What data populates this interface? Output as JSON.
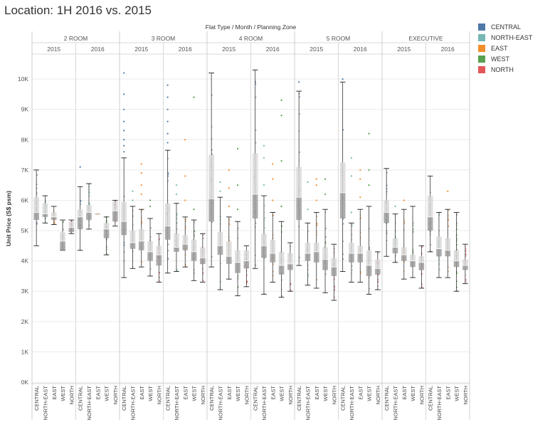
{
  "page": {
    "title": "Location: 1H 2016 vs. 2015"
  },
  "legend": {
    "items": [
      {
        "label": "CENTRAL",
        "color": "#4e79a7"
      },
      {
        "label": "NORTH-EAST",
        "color": "#76b7b2"
      },
      {
        "label": "EAST",
        "color": "#f28e2b"
      },
      {
        "label": "WEST",
        "color": "#59a14f"
      },
      {
        "label": "NORTH",
        "color": "#e15759"
      }
    ]
  },
  "chart_data": {
    "type": "boxplot",
    "header_title": "Flat Type / Month / Planning Zone",
    "ylabel": "Unit Price (S$ psm)",
    "ylim": [
      0,
      10800
    ],
    "y_ticks": [
      0,
      1000,
      2000,
      3000,
      4000,
      5000,
      6000,
      7000,
      8000,
      9000,
      10000
    ],
    "y_tick_labels": [
      "0K",
      "1K",
      "2K",
      "3K",
      "4K",
      "5K",
      "6K",
      "7K",
      "8K",
      "9K",
      "10K"
    ],
    "grid": true,
    "legend_position": "top-right",
    "groups": [
      {
        "flat_type": "2 ROOM",
        "periods": [
          {
            "year": "2015",
            "zones": [
              {
                "zone": "CENTRAL",
                "min": 4500,
                "q1": 5350,
                "median": 5600,
                "q3": 6100,
                "max": 7000,
                "outliers": []
              },
              {
                "zone": "NORTH-EAST",
                "min": 5250,
                "q1": 5450,
                "median": 5550,
                "q3": 5900,
                "max": 6150,
                "outliers": []
              },
              {
                "zone": "EAST",
                "min": 5200,
                "q1": 5350,
                "median": 5450,
                "q3": 5600,
                "max": 5800,
                "outliers": []
              },
              {
                "zone": "WEST",
                "min": 4350,
                "q1": 4350,
                "median": 4650,
                "q3": 4950,
                "max": 5350,
                "outliers": []
              },
              {
                "zone": "NORTH",
                "min": 4900,
                "q1": 4950,
                "median": 5100,
                "q3": 5300,
                "max": 5350,
                "outliers": []
              }
            ]
          },
          {
            "year": "2016",
            "zones": [
              {
                "zone": "CENTRAL",
                "min": 4350,
                "q1": 5050,
                "median": 5450,
                "q3": 5700,
                "max": 6450,
                "outliers": [
                  7100
                ]
              },
              {
                "zone": "NORTH-EAST",
                "min": 5050,
                "q1": 5350,
                "median": 5600,
                "q3": 5850,
                "max": 6550,
                "outliers": []
              },
              {
                "zone": "EAST",
                "min": 5550,
                "q1": 5550,
                "median": 5550,
                "q3": 5550,
                "max": 5550,
                "outliers": []
              },
              {
                "zone": "WEST",
                "min": 4200,
                "q1": 4750,
                "median": 5050,
                "q3": 5250,
                "max": 5450,
                "outliers": [
                  5450
                ]
              },
              {
                "zone": "NORTH",
                "min": 5150,
                "q1": 5300,
                "median": 5650,
                "q3": 5950,
                "max": 6000,
                "outliers": []
              }
            ]
          }
        ]
      },
      {
        "flat_type": "3 ROOM",
        "periods": [
          {
            "year": "2015",
            "zones": [
              {
                "zone": "CENTRAL",
                "min": 3450,
                "q1": 4850,
                "median": 5300,
                "q3": 5950,
                "max": 7400,
                "outliers": [
                  7600,
                  7800,
                  8000,
                  8300,
                  8600,
                  9000,
                  9500,
                  10200
                ]
              },
              {
                "zone": "NORTH-EAST",
                "min": 3750,
                "q1": 4400,
                "median": 4600,
                "q3": 5000,
                "max": 5800,
                "outliers": [
                  6000,
                  6300
                ]
              },
              {
                "zone": "EAST",
                "min": 3800,
                "q1": 4350,
                "median": 4650,
                "q3": 5050,
                "max": 5700,
                "outliers": [
                  6200,
                  6500,
                  6900,
                  7200
                ]
              },
              {
                "zone": "WEST",
                "min": 3500,
                "q1": 4000,
                "median": 4300,
                "q3": 4650,
                "max": 5400,
                "outliers": [
                  5800,
                  6000
                ]
              },
              {
                "zone": "NORTH",
                "min": 3300,
                "q1": 3850,
                "median": 4200,
                "q3": 4500,
                "max": 4900,
                "outliers": []
              }
            ]
          },
          {
            "year": "2016",
            "zones": [
              {
                "zone": "CENTRAL",
                "min": 3600,
                "q1": 4700,
                "median": 5150,
                "q3": 5900,
                "max": 7650,
                "outliers": [
                  7900,
                  8200,
                  8600,
                  9000,
                  9400,
                  9800
                ]
              },
              {
                "zone": "NORTH-EAST",
                "min": 3650,
                "q1": 4300,
                "median": 4450,
                "q3": 4900,
                "max": 5900,
                "outliers": [
                  6200,
                  6500
                ]
              },
              {
                "zone": "EAST",
                "min": 3800,
                "q1": 4350,
                "median": 4550,
                "q3": 4850,
                "max": 5450,
                "outliers": [
                  6000,
                  6800,
                  8000
                ]
              },
              {
                "zone": "WEST",
                "min": 3350,
                "q1": 4000,
                "median": 4300,
                "q3": 4700,
                "max": 5350,
                "outliers": [
                  5700,
                  9400
                ]
              },
              {
                "zone": "NORTH",
                "min": 3300,
                "q1": 3900,
                "median": 4100,
                "q3": 4450,
                "max": 4900,
                "outliers": []
              }
            ]
          }
        ]
      },
      {
        "flat_type": "4 ROOM",
        "periods": [
          {
            "year": "2015",
            "zones": [
              {
                "zone": "CENTRAL",
                "min": 3800,
                "q1": 5300,
                "median": 6050,
                "q3": 7500,
                "max": 10200,
                "outliers": []
              },
              {
                "zone": "NORTH-EAST",
                "min": 3050,
                "q1": 4200,
                "median": 4500,
                "q3": 4950,
                "max": 6100,
                "outliers": [
                  6300,
                  6600
                ]
              },
              {
                "zone": "EAST",
                "min": 3400,
                "q1": 3900,
                "median": 4150,
                "q3": 4650,
                "max": 5450,
                "outliers": [
                  5800,
                  6400,
                  7000
                ]
              },
              {
                "zone": "WEST",
                "min": 2850,
                "q1": 3600,
                "median": 3950,
                "q3": 4350,
                "max": 5300,
                "outliers": [
                  5700,
                  6500,
                  7700
                ]
              },
              {
                "zone": "NORTH",
                "min": 3150,
                "q1": 3750,
                "median": 4000,
                "q3": 4350,
                "max": 4500,
                "outliers": []
              }
            ]
          },
          {
            "year": "2016",
            "zones": [
              {
                "zone": "CENTRAL",
                "min": 3750,
                "q1": 5400,
                "median": 6200,
                "q3": 7550,
                "max": 10300,
                "outliers": []
              },
              {
                "zone": "NORTH-EAST",
                "min": 2900,
                "q1": 4100,
                "median": 4500,
                "q3": 4900,
                "max": 6150,
                "outliers": [
                  6500,
                  7400,
                  7800
                ]
              },
              {
                "zone": "EAST",
                "min": 3300,
                "q1": 3950,
                "median": 4250,
                "q3": 4700,
                "max": 5600,
                "outliers": [
                  6000,
                  6700,
                  7200
                ]
              },
              {
                "zone": "WEST",
                "min": 2800,
                "q1": 3550,
                "median": 3850,
                "q3": 4300,
                "max": 5300,
                "outliers": [
                  5800,
                  7300,
                  8800,
                  9300
                ]
              },
              {
                "zone": "NORTH",
                "min": 3000,
                "q1": 3700,
                "median": 3900,
                "q3": 4250,
                "max": 4600,
                "outliers": []
              }
            ]
          }
        ]
      },
      {
        "flat_type": "5 ROOM",
        "periods": [
          {
            "year": "2015",
            "zones": [
              {
                "zone": "CENTRAL",
                "min": 3850,
                "q1": 5350,
                "median": 6100,
                "q3": 7100,
                "max": 9600,
                "outliers": [
                  9900
                ]
              },
              {
                "zone": "NORTH-EAST",
                "min": 3200,
                "q1": 4000,
                "median": 4250,
                "q3": 4600,
                "max": 5250,
                "outliers": [
                  5700,
                  6600
                ]
              },
              {
                "zone": "EAST",
                "min": 3100,
                "q1": 3950,
                "median": 4300,
                "q3": 4600,
                "max": 5600,
                "outliers": [
                  6000,
                  6500,
                  6700
                ]
              },
              {
                "zone": "WEST",
                "min": 2950,
                "q1": 3700,
                "median": 4050,
                "q3": 4450,
                "max": 5700,
                "outliers": [
                  6200,
                  6700
                ]
              },
              {
                "zone": "NORTH",
                "min": 2700,
                "q1": 3500,
                "median": 3800,
                "q3": 4100,
                "max": 4550,
                "outliers": []
              }
            ]
          },
          {
            "year": "2016",
            "zones": [
              {
                "zone": "CENTRAL",
                "min": 3650,
                "q1": 5400,
                "median": 6250,
                "q3": 7250,
                "max": 9900,
                "outliers": [
                  10000
                ]
              },
              {
                "zone": "NORTH-EAST",
                "min": 3300,
                "q1": 3950,
                "median": 4250,
                "q3": 4600,
                "max": 5250,
                "outliers": [
                  5600,
                  6800,
                  7400
                ]
              },
              {
                "zone": "EAST",
                "min": 3300,
                "q1": 3950,
                "median": 4250,
                "q3": 4500,
                "max": 5700,
                "outliers": [
                  6100,
                  6700,
                  7000
                ]
              },
              {
                "zone": "WEST",
                "min": 2900,
                "q1": 3500,
                "median": 3850,
                "q3": 4350,
                "max": 5800,
                "outliers": [
                  6500,
                  7000,
                  8200
                ]
              },
              {
                "zone": "NORTH",
                "min": 3050,
                "q1": 3550,
                "median": 3750,
                "q3": 4050,
                "max": 4300,
                "outliers": []
              }
            ]
          }
        ]
      },
      {
        "flat_type": "EXECUTIVE",
        "periods": [
          {
            "year": "2015",
            "zones": [
              {
                "zone": "CENTRAL",
                "min": 4150,
                "q1": 5250,
                "median": 5600,
                "q3": 6000,
                "max": 7050,
                "outliers": []
              },
              {
                "zone": "NORTH-EAST",
                "min": 3950,
                "q1": 4250,
                "median": 4450,
                "q3": 4750,
                "max": 5550,
                "outliers": [
                  5800
                ]
              },
              {
                "zone": "EAST",
                "min": 3400,
                "q1": 4000,
                "median": 4200,
                "q3": 4450,
                "max": 5700,
                "outliers": [
                  6000
                ]
              },
              {
                "zone": "WEST",
                "min": 3450,
                "q1": 3800,
                "median": 4000,
                "q3": 4200,
                "max": 5800,
                "outliers": []
              },
              {
                "zone": "NORTH",
                "min": 3100,
                "q1": 3700,
                "median": 3950,
                "q3": 4150,
                "max": 4500,
                "outliers": []
              }
            ]
          },
          {
            "year": "2016",
            "zones": [
              {
                "zone": "CENTRAL",
                "min": 4300,
                "q1": 5000,
                "median": 5450,
                "q3": 6150,
                "max": 6800,
                "outliers": []
              },
              {
                "zone": "NORTH-EAST",
                "min": 3450,
                "q1": 4150,
                "median": 4400,
                "q3": 4800,
                "max": 5600,
                "outliers": []
              },
              {
                "zone": "EAST",
                "min": 3450,
                "q1": 4150,
                "median": 4350,
                "q3": 4750,
                "max": 5700,
                "outliers": [
                  6300
                ]
              },
              {
                "zone": "WEST",
                "min": 3000,
                "q1": 3800,
                "median": 4000,
                "q3": 4350,
                "max": 5600,
                "outliers": []
              },
              {
                "zone": "NORTH",
                "min": 3250,
                "q1": 3700,
                "median": 3850,
                "q3": 4050,
                "max": 4550,
                "outliers": []
              }
            ]
          }
        ]
      }
    ]
  }
}
